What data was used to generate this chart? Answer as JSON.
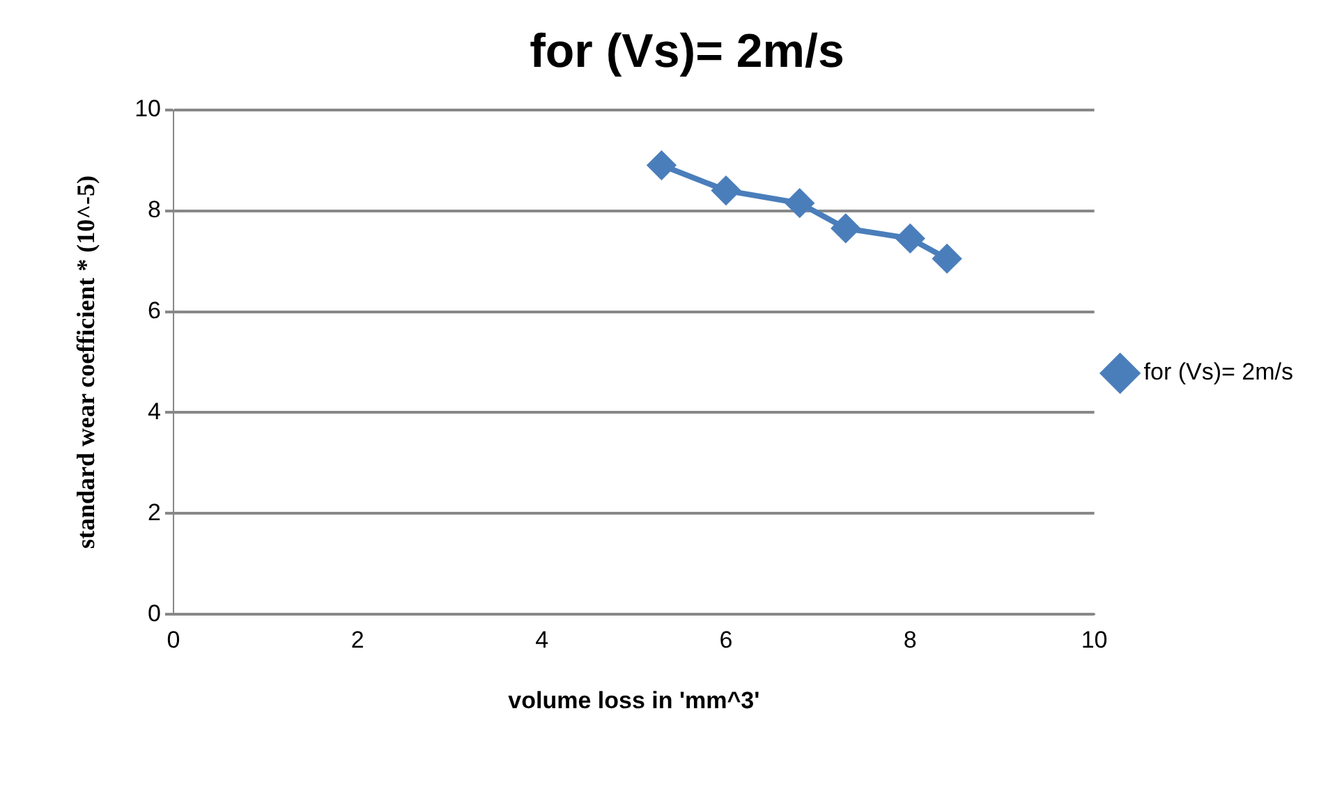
{
  "chart_data": {
    "type": "line",
    "title": "for (Vs)= 2m/s",
    "xlabel": "volume loss in 'mm^3'",
    "ylabel": "standard wear coefficient * (10^-5)",
    "series": [
      {
        "name": "for (Vs)= 2m/s",
        "color": "#4a7ebb",
        "x": [
          5.3,
          6.0,
          6.8,
          7.3,
          8.0,
          8.4
        ],
        "values": [
          8.9,
          8.4,
          8.15,
          7.65,
          7.45,
          7.05
        ]
      }
    ],
    "xlim": [
      0,
      10
    ],
    "xticks": [
      0,
      2,
      4,
      6,
      8,
      10
    ],
    "ylim": [
      0,
      10
    ],
    "yticks": [
      0,
      2,
      4,
      6,
      8,
      10
    ],
    "grid": "y",
    "legend": "right",
    "marker": "diamond",
    "line_style": "solid"
  }
}
